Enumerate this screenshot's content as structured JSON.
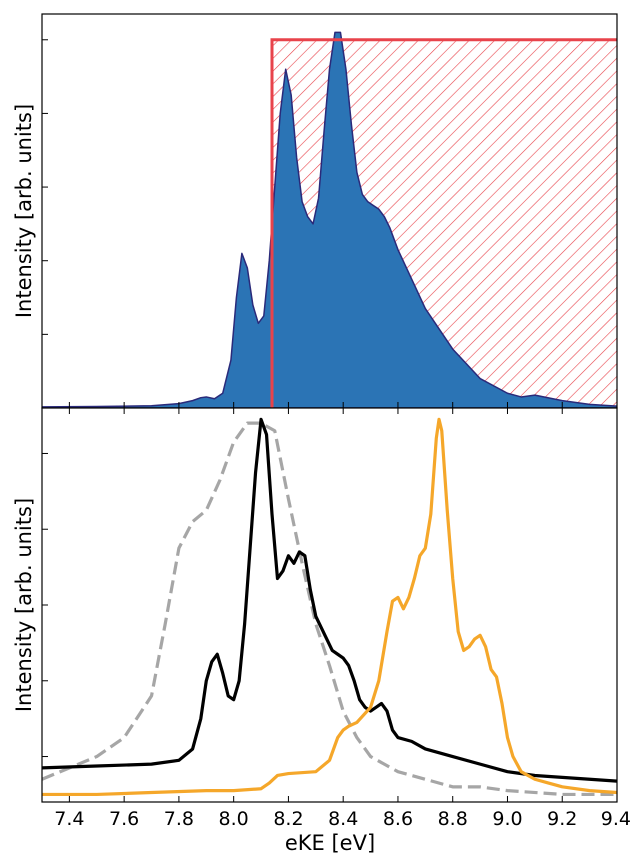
{
  "chart_data": [
    {
      "type": "area",
      "panel": "top",
      "ylabel": "Intensity [arb. units]",
      "xlim": [
        7.3,
        9.4
      ],
      "ylim": [
        0,
        1.07
      ],
      "y_ticks_labeled": false,
      "series": [
        {
          "color": "#2b74b5",
          "edge_color": "#2a2a7a",
          "x": [
            7.3,
            7.5,
            7.7,
            7.8,
            7.85,
            7.88,
            7.9,
            7.93,
            7.96,
            7.99,
            8.01,
            8.03,
            8.05,
            8.07,
            8.09,
            8.11,
            8.13,
            8.15,
            8.17,
            8.19,
            8.21,
            8.23,
            8.25,
            8.27,
            8.29,
            8.31,
            8.33,
            8.35,
            8.37,
            8.39,
            8.41,
            8.43,
            8.45,
            8.47,
            8.49,
            8.51,
            8.53,
            8.55,
            8.57,
            8.6,
            8.65,
            8.7,
            8.8,
            8.9,
            9.0,
            9.05,
            9.1,
            9.2,
            9.3,
            9.4
          ],
          "y": [
            0.003,
            0.004,
            0.006,
            0.012,
            0.02,
            0.028,
            0.03,
            0.025,
            0.04,
            0.13,
            0.3,
            0.42,
            0.38,
            0.28,
            0.23,
            0.25,
            0.4,
            0.6,
            0.8,
            0.92,
            0.85,
            0.68,
            0.56,
            0.52,
            0.5,
            0.57,
            0.75,
            0.92,
            1.02,
            1.02,
            0.92,
            0.77,
            0.64,
            0.58,
            0.56,
            0.55,
            0.54,
            0.52,
            0.49,
            0.43,
            0.35,
            0.27,
            0.16,
            0.08,
            0.04,
            0.03,
            0.035,
            0.02,
            0.01,
            0.005
          ]
        }
      ],
      "shaded_region": {
        "x_start": 8.14,
        "x_end": 9.4,
        "y_top": 1.0,
        "color": "#e8434b",
        "pattern": "diagonal-hatch"
      }
    },
    {
      "type": "line",
      "panel": "bottom",
      "xlabel": "eKE [eV]",
      "ylabel": "Intensity [arb. units]",
      "xlim": [
        7.3,
        9.4
      ],
      "ylim": [
        -0.02,
        1.02
      ],
      "x_ticks": [
        "7.4",
        "7.6",
        "7.8",
        "8.0",
        "8.2",
        "8.4",
        "8.6",
        "8.8",
        "9.0",
        "9.2",
        "9.4"
      ],
      "y_ticks_labeled": false,
      "series": [
        {
          "color": "#000000",
          "style": "solid",
          "x": [
            7.3,
            7.5,
            7.7,
            7.8,
            7.85,
            7.88,
            7.9,
            7.92,
            7.94,
            7.96,
            7.98,
            8.0,
            8.02,
            8.04,
            8.06,
            8.08,
            8.1,
            8.12,
            8.14,
            8.16,
            8.18,
            8.2,
            8.22,
            8.24,
            8.26,
            8.28,
            8.3,
            8.32,
            8.34,
            8.36,
            8.38,
            8.4,
            8.42,
            8.44,
            8.46,
            8.48,
            8.5,
            8.52,
            8.54,
            8.56,
            8.58,
            8.6,
            8.65,
            8.7,
            8.8,
            8.9,
            9.0,
            9.1,
            9.2,
            9.3,
            9.4
          ],
          "y": [
            0.07,
            0.075,
            0.08,
            0.09,
            0.12,
            0.2,
            0.3,
            0.35,
            0.37,
            0.32,
            0.26,
            0.25,
            0.3,
            0.45,
            0.65,
            0.85,
            0.99,
            0.95,
            0.74,
            0.57,
            0.59,
            0.63,
            0.61,
            0.64,
            0.63,
            0.54,
            0.47,
            0.44,
            0.41,
            0.38,
            0.37,
            0.36,
            0.34,
            0.3,
            0.25,
            0.23,
            0.22,
            0.23,
            0.24,
            0.22,
            0.17,
            0.15,
            0.14,
            0.12,
            0.1,
            0.08,
            0.06,
            0.05,
            0.045,
            0.04,
            0.035
          ]
        },
        {
          "color": "#f5a72a",
          "style": "solid",
          "x": [
            7.3,
            7.5,
            7.7,
            7.9,
            8.0,
            8.1,
            8.13,
            8.16,
            8.2,
            8.3,
            8.35,
            8.38,
            8.4,
            8.42,
            8.45,
            8.5,
            8.53,
            8.56,
            8.58,
            8.6,
            8.62,
            8.64,
            8.66,
            8.68,
            8.7,
            8.72,
            8.74,
            8.75,
            8.76,
            8.78,
            8.8,
            8.82,
            8.84,
            8.86,
            8.88,
            8.9,
            8.92,
            8.94,
            8.96,
            8.98,
            9.0,
            9.02,
            9.05,
            9.1,
            9.15,
            9.2,
            9.3,
            9.4
          ],
          "y": [
            0.0,
            0.0,
            0.005,
            0.01,
            0.01,
            0.015,
            0.03,
            0.05,
            0.055,
            0.06,
            0.09,
            0.15,
            0.17,
            0.18,
            0.19,
            0.23,
            0.3,
            0.43,
            0.51,
            0.52,
            0.49,
            0.52,
            0.57,
            0.63,
            0.65,
            0.74,
            0.94,
            0.99,
            0.96,
            0.75,
            0.57,
            0.43,
            0.38,
            0.39,
            0.41,
            0.42,
            0.39,
            0.33,
            0.31,
            0.24,
            0.15,
            0.1,
            0.06,
            0.04,
            0.03,
            0.02,
            0.01,
            0.005
          ]
        },
        {
          "color": "#a6a6a6",
          "style": "dashed",
          "x": [
            7.3,
            7.5,
            7.6,
            7.7,
            7.75,
            7.8,
            7.85,
            7.9,
            7.95,
            8.0,
            8.05,
            8.1,
            8.15,
            8.2,
            8.25,
            8.3,
            8.35,
            8.4,
            8.45,
            8.5,
            8.55,
            8.6,
            8.7,
            8.8,
            8.9,
            9.0,
            9.2,
            9.4
          ],
          "y": [
            0.04,
            0.1,
            0.15,
            0.26,
            0.45,
            0.65,
            0.72,
            0.75,
            0.83,
            0.93,
            0.98,
            0.98,
            0.96,
            0.78,
            0.61,
            0.45,
            0.34,
            0.22,
            0.15,
            0.1,
            0.08,
            0.06,
            0.04,
            0.02,
            0.02,
            0.01,
            0.0,
            0.0
          ]
        }
      ]
    }
  ]
}
